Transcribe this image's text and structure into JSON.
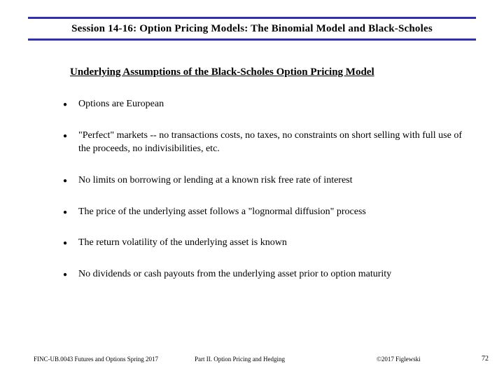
{
  "header": {
    "title": "Session 14-16:  Option Pricing Models:  The Binomial Model and Black-Scholes",
    "bar_color": "#333399"
  },
  "subtitle": "Underlying Assumptions of the Black-Scholes Option Pricing Model",
  "bullets": [
    "Options are European",
    "\"Perfect\" markets -- no transactions costs, no taxes, no constraints on short selling with full use of the proceeds, no indivisibilities, etc.",
    "No limits on borrowing or lending at a known risk free rate of interest",
    "The price of the underlying asset follows a \"lognormal diffusion\" process",
    "The return volatility of the underlying asset is known",
    "No dividends or cash payouts from the underlying asset prior to option maturity"
  ],
  "footer": {
    "left": "FINC-UB.0043 Futures and Options Spring 2017",
    "center": "Part II. Option Pricing and Hedging",
    "right": "©2017 Figlewski",
    "page": "72"
  },
  "style": {
    "background_color": "#ffffff",
    "text_color": "#000000",
    "title_fontsize": 15,
    "subtitle_fontsize": 15,
    "body_fontsize": 14,
    "footer_fontsize": 9
  }
}
